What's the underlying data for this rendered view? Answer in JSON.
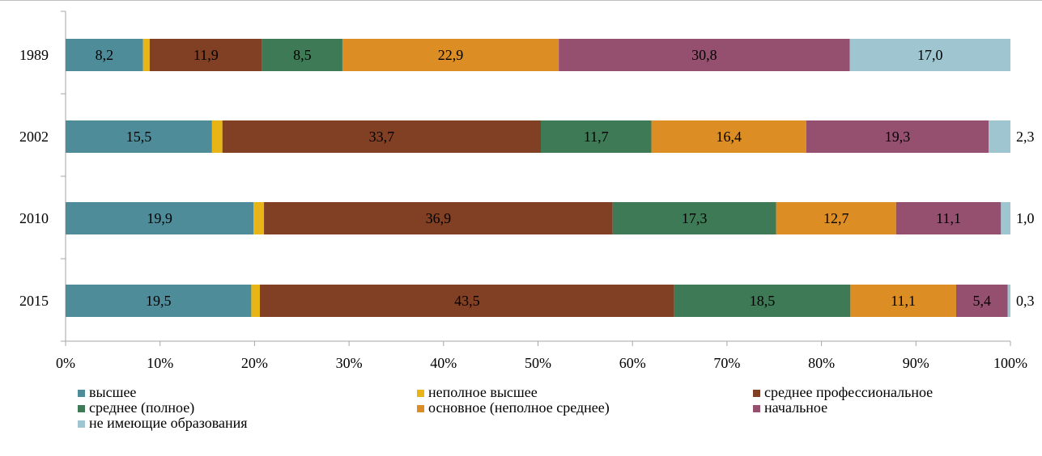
{
  "chart_data": {
    "type": "bar",
    "orientation": "horizontal",
    "stacked": "percent",
    "categories": [
      "1989",
      "2002",
      "2010",
      "2015"
    ],
    "series": [
      {
        "name": "высшее",
        "color": "#4f8c9a",
        "values": [
          8.2,
          15.5,
          19.9,
          19.5
        ],
        "labels": [
          "8,2",
          "15,5",
          "19,9",
          "19,5"
        ]
      },
      {
        "name": "неполное высшее",
        "color": "#e8b416",
        "values": [
          0.7,
          1.1,
          1.1,
          0.9
        ],
        "labels": [
          "",
          "",
          "",
          ""
        ]
      },
      {
        "name": "среднее профессиональное",
        "color": "#813f24",
        "values": [
          11.9,
          33.7,
          36.9,
          43.5
        ],
        "labels": [
          "11,9",
          "33,7",
          "36,9",
          "43,5"
        ]
      },
      {
        "name": "среднее (полное)",
        "color": "#3d7a55",
        "values": [
          8.5,
          11.7,
          17.3,
          18.5
        ],
        "labels": [
          "8,5",
          "11,7",
          "17,3",
          "18,5"
        ]
      },
      {
        "name": "основное (неполное среднее)",
        "color": "#dc8d24",
        "values": [
          22.9,
          16.4,
          12.7,
          11.1
        ],
        "labels": [
          "22,9",
          "16,4",
          "12,7",
          "11,1"
        ]
      },
      {
        "name": "начальное",
        "color": "#96506f",
        "values": [
          30.8,
          19.3,
          11.1,
          5.4
        ],
        "labels": [
          "30,8",
          "19,3",
          "11,1",
          "5,4"
        ]
      },
      {
        "name": "не имеющие образования",
        "color": "#9fc6d0",
        "values": [
          17.0,
          2.3,
          1.0,
          0.3
        ],
        "labels": [
          "17,0",
          "2,3",
          "1,0",
          "0,3"
        ]
      }
    ],
    "x_ticks": [
      "0%",
      "10%",
      "20%",
      "30%",
      "40%",
      "50%",
      "60%",
      "70%",
      "80%",
      "90%",
      "100%"
    ],
    "xlim": [
      0,
      100
    ],
    "title": "",
    "xlabel": "",
    "ylabel": "",
    "grid": false,
    "legend_position": "bottom"
  }
}
